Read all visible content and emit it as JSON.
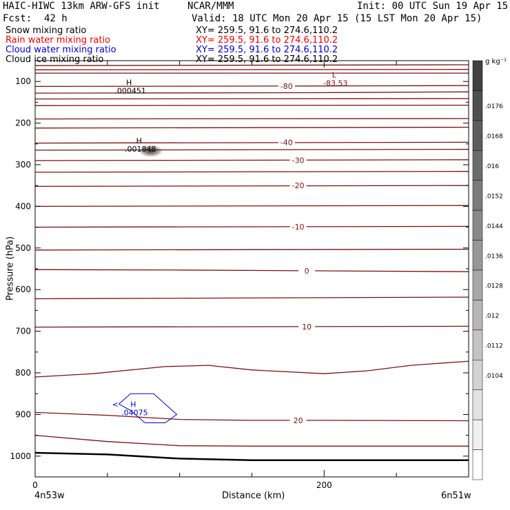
{
  "header": {
    "model": "HAIC-HIWC 13km ARW-GFS init",
    "org": "NCAR/MMM",
    "init": "Init: 00 UTC Sun 19 Apr 15",
    "fcst_label": "Fcst:",
    "fcst_value": "42 h",
    "valid": "Valid: 18 UTC Mon 20 Apr 15 (15 LST Mon 20 Apr 15)"
  },
  "fields": [
    {
      "name": "Snow mixing ratio",
      "xy": "XY= 259.5, 91.6 to 274.6,110.2",
      "color": "#000000"
    },
    {
      "name": "Rain water mixing ratio",
      "xy": "XY= 259.5, 91.6 to 274.6,110.2",
      "color": "#ee0000"
    },
    {
      "name": "Cloud water mixing ratio",
      "xy": "XY= 259.5, 91.6 to 274.6,110.2",
      "color": "#0000cc"
    },
    {
      "name": "Cloud ice mixing ratio",
      "xy": "XY= 259.5, 91.6 to 274.6,110.2",
      "color": "#000000"
    }
  ],
  "colorbar": {
    "unit": "g kg⁻¹",
    "labels": [
      ".0176",
      ".0168",
      ".016",
      ".0152",
      ".0144",
      ".0136",
      ".0128",
      ".012",
      ".0112",
      ".0104"
    ]
  },
  "chart_data": {
    "type": "line",
    "xlabel": "Distance (km)",
    "ylabel": "Pressure (hPa)",
    "xlim": [
      0,
      300
    ],
    "ylim": [
      50,
      1050
    ],
    "x_ticks": [
      0,
      200
    ],
    "y_ticks": [
      100,
      200,
      300,
      400,
      500,
      600,
      700,
      800,
      900,
      1000
    ],
    "x_endpoints": [
      "4n53w",
      "6n51w"
    ],
    "temperature_contours": {
      "color": "#7a1010",
      "levels": [
        {
          "label": "-80",
          "label_x": 174,
          "lx": 0
        },
        {
          "label": "-40",
          "label_x": 174,
          "lx": 0
        },
        {
          "label": "-30",
          "label_x": 182,
          "lx": 0
        },
        {
          "label": "-20",
          "label_x": 182,
          "lx": 0
        },
        {
          "label": "-10",
          "label_x": 182,
          "lx": 0
        },
        {
          "label": "0",
          "label_x": 188,
          "lx": 0
        },
        {
          "label": "10",
          "label_x": 188,
          "lx": 0
        },
        {
          "label": "20",
          "label_x": 182,
          "lx": 0
        }
      ],
      "lines": [
        {
          "x": [
            0,
            300
          ],
          "p": [
            62,
            60
          ]
        },
        {
          "x": [
            0,
            300
          ],
          "p": [
            72,
            71
          ]
        },
        {
          "x": [
            0,
            300
          ],
          "p": [
            80,
            80
          ]
        },
        {
          "x": [
            0,
            190,
            300
          ],
          "p": [
            112,
            111,
            110
          ]
        },
        {
          "x": [
            0,
            190,
            300
          ],
          "p": [
            128,
            127,
            125
          ]
        },
        {
          "x": [
            0,
            300
          ],
          "p": [
            142,
            141
          ]
        },
        {
          "x": [
            0,
            300
          ],
          "p": [
            158,
            157
          ]
        },
        {
          "x": [
            0,
            300
          ],
          "p": [
            190,
            189
          ]
        },
        {
          "x": [
            0,
            300
          ],
          "p": [
            212,
            210
          ]
        },
        {
          "x": [
            0,
            300
          ],
          "p": [
            248,
            246
          ]
        },
        {
          "x": [
            0,
            300
          ],
          "p": [
            265,
            263
          ]
        },
        {
          "x": [
            0,
            300
          ],
          "p": [
            290,
            288
          ]
        },
        {
          "x": [
            0,
            300
          ],
          "p": [
            318,
            316
          ]
        },
        {
          "x": [
            0,
            300
          ],
          "p": [
            352,
            350
          ]
        },
        {
          "x": [
            0,
            300
          ],
          "p": [
            400,
            398
          ]
        },
        {
          "x": [
            0,
            300
          ],
          "p": [
            450,
            448
          ]
        },
        {
          "x": [
            0,
            300
          ],
          "p": [
            505,
            503
          ]
        },
        {
          "x": [
            0,
            100,
            200,
            300
          ],
          "p": [
            552,
            553,
            555,
            557
          ]
        },
        {
          "x": [
            0,
            300
          ],
          "p": [
            622,
            618
          ]
        },
        {
          "x": [
            0,
            300
          ],
          "p": [
            690,
            688
          ]
        },
        {
          "x": [
            0,
            40,
            90,
            120,
            150,
            200,
            230,
            260,
            300
          ],
          "p": [
            810,
            802,
            785,
            782,
            793,
            802,
            795,
            782,
            772
          ]
        },
        {
          "x": [
            0,
            50,
            100,
            150,
            200,
            300
          ],
          "p": [
            895,
            902,
            912,
            914,
            914,
            915
          ]
        },
        {
          "x": [
            0,
            50,
            100,
            150,
            300
          ],
          "p": [
            950,
            965,
            975,
            976,
            976
          ]
        }
      ],
      "labels_at": [
        {
          "label": "-80",
          "x": 174,
          "p": 111
        },
        {
          "label": "-40",
          "x": 174,
          "p": 246
        },
        {
          "label": "-30",
          "x": 182,
          "p": 289
        },
        {
          "label": "-20",
          "x": 182,
          "p": 350
        },
        {
          "label": "-10",
          "x": 182,
          "p": 449
        },
        {
          "label": "0",
          "x": 188,
          "p": 555
        },
        {
          "label": "10",
          "x": 188,
          "p": 689
        },
        {
          "label": "20",
          "x": 182,
          "p": 914
        }
      ]
    },
    "terrain": {
      "x": [
        0,
        50,
        100,
        150,
        300
      ],
      "p": [
        992,
        996,
        1006,
        1010,
        1010
      ],
      "color": "#000000"
    },
    "extrema": [
      {
        "type": "H",
        "value": ".000451",
        "x": 63,
        "p": 112,
        "color": "#000000"
      },
      {
        "type": "H",
        "value": ".001848",
        "x": 70,
        "p": 252,
        "color": "#000000"
      },
      {
        "type": "H",
        "value": ".04075",
        "x": 66,
        "p": 885,
        "color": "#0000cc"
      },
      {
        "type": "L",
        "value": "-83.53",
        "x": 205,
        "p": 94,
        "color": "#7a1010"
      }
    ],
    "cloud_water_contour": {
      "x": [
        58,
        66,
        82,
        98,
        90,
        76,
        66
      ],
      "p": [
        875,
        850,
        850,
        900,
        920,
        920,
        890
      ],
      "color": "#0000cc"
    },
    "snow_shading": {
      "x": 80,
      "p": 267,
      "value": ".0176"
    }
  }
}
